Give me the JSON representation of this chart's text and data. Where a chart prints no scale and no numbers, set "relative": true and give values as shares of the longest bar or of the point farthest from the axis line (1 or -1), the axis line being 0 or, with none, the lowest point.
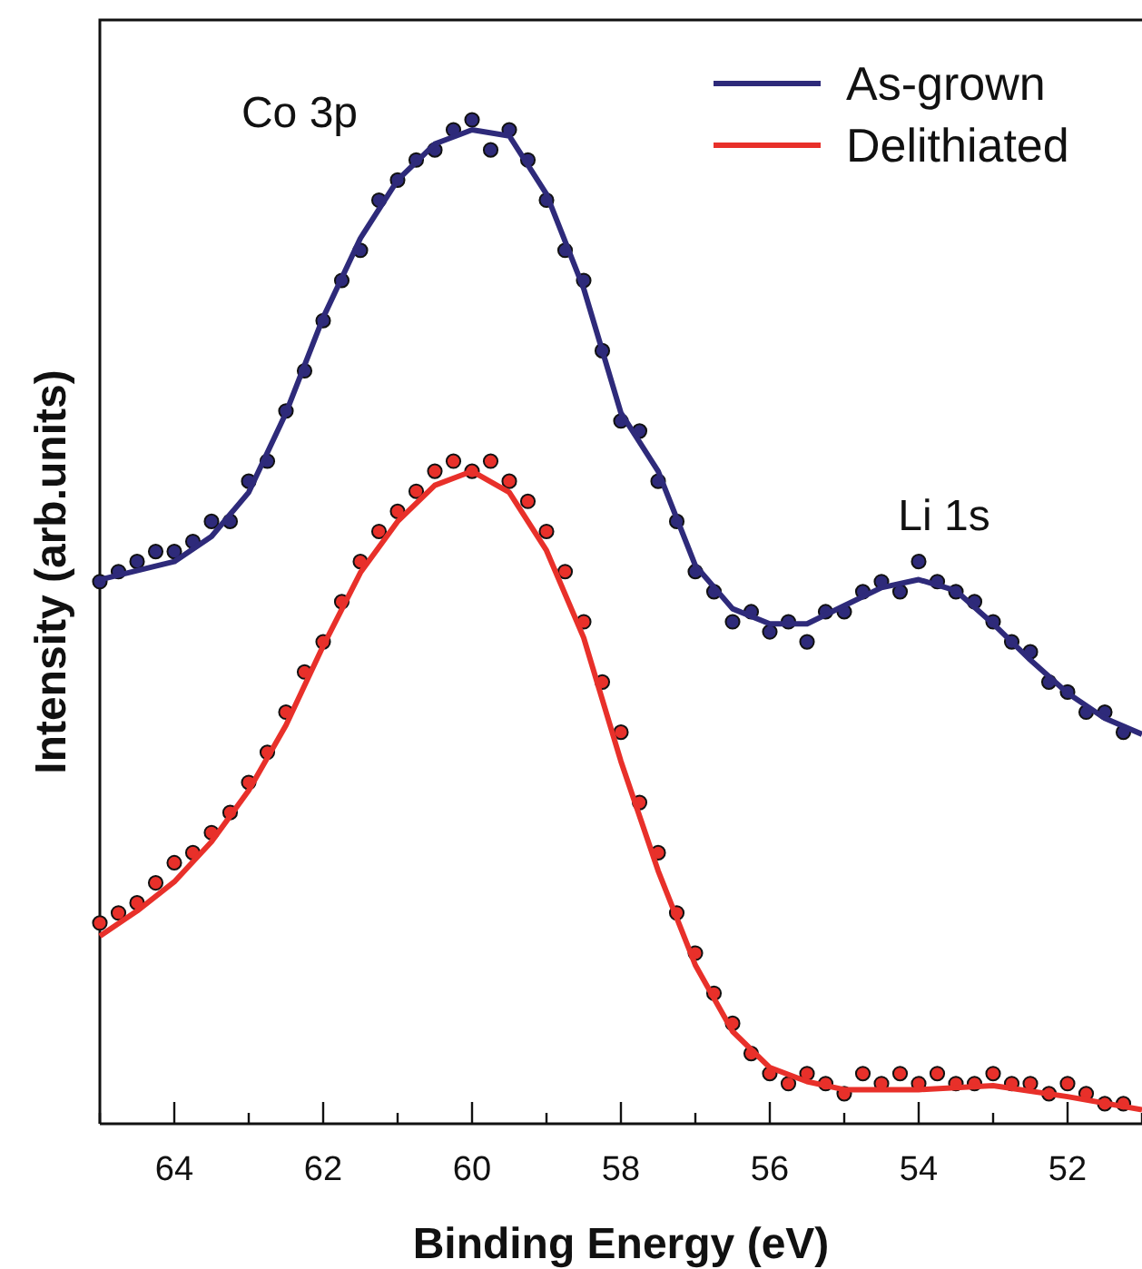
{
  "chart_data": {
    "type": "line",
    "xlabel": "Binding Energy (eV)",
    "ylabel": "Intensity (arb.units)",
    "relative": true,
    "xlim": [
      65,
      51
    ],
    "xticks": [
      {
        "value": 65,
        "label": null
      },
      64,
      {
        "value": 63,
        "label": null
      },
      62,
      {
        "value": 61,
        "label": null
      },
      60,
      {
        "value": 59,
        "label": null
      },
      58,
      {
        "value": 57,
        "label": null
      },
      56,
      {
        "value": 55,
        "label": null
      },
      54,
      {
        "value": 53,
        "label": null
      },
      52,
      {
        "value": 51,
        "label": null
      }
    ],
    "legend": "top right",
    "annotations": [
      "Co 3p",
      "Li 1s"
    ],
    "series": [
      {
        "type": "scatter",
        "name": "As-grown",
        "color": "#2e2a7a",
        "marker": "circle",
        "x": [
          65,
          64.75,
          64.5,
          64.25,
          64,
          63.75,
          63.5,
          63.25,
          63,
          62.75,
          62.5,
          62.25,
          62,
          61.75,
          61.5,
          61.25,
          61,
          60.75,
          60.5,
          60.25,
          60,
          59.75,
          59.5,
          59.25,
          59,
          58.75,
          58.5,
          58.25,
          58,
          57.75,
          57.5,
          57.25,
          57,
          56.75,
          56.5,
          56.25,
          56,
          55.75,
          55.5,
          55.25,
          55,
          54.75,
          54.5,
          54.25,
          54,
          53.75,
          53.5,
          53.25,
          53,
          52.75,
          52.5,
          52.25,
          52,
          51.75,
          51.5,
          51.25
        ],
        "values": [
          0.54,
          0.55,
          0.56,
          0.57,
          0.57,
          0.58,
          0.6,
          0.6,
          0.64,
          0.66,
          0.71,
          0.75,
          0.8,
          0.84,
          0.87,
          0.92,
          0.94,
          0.96,
          0.97,
          0.99,
          1,
          0.97,
          0.99,
          0.96,
          0.92,
          0.87,
          0.84,
          0.77,
          0.7,
          0.69,
          0.64,
          0.6,
          0.55,
          0.53,
          0.5,
          0.51,
          0.49,
          0.5,
          0.48,
          0.51,
          0.51,
          0.53,
          0.54,
          0.53,
          0.56,
          0.54,
          0.53,
          0.52,
          0.5,
          0.48,
          0.47,
          0.44,
          0.43,
          0.41,
          0.41,
          0.39
        ]
      },
      {
        "type": "scatter",
        "name": "Delithiated",
        "color": "#e8302a",
        "marker": "circle",
        "x": [
          65,
          64.75,
          64.5,
          64.25,
          64,
          63.75,
          63.5,
          63.25,
          63,
          62.75,
          62.5,
          62.25,
          62,
          61.75,
          61.5,
          61.25,
          61,
          60.75,
          60.5,
          60.25,
          60,
          59.75,
          59.5,
          59.25,
          59,
          58.75,
          58.5,
          58.25,
          58,
          57.75,
          57.5,
          57.25,
          57,
          56.75,
          56.5,
          56.25,
          56,
          55.75,
          55.5,
          55.25,
          55,
          54.75,
          54.5,
          54.25,
          54,
          53.75,
          53.5,
          53.25,
          53,
          52.75,
          52.5,
          52.25,
          52,
          51.75,
          51.5,
          51.25
        ],
        "values": [
          0.2,
          0.21,
          0.22,
          0.24,
          0.26,
          0.27,
          0.29,
          0.31,
          0.34,
          0.37,
          0.41,
          0.45,
          0.48,
          0.52,
          0.56,
          0.59,
          0.61,
          0.63,
          0.65,
          0.66,
          0.65,
          0.66,
          0.64,
          0.62,
          0.59,
          0.55,
          0.5,
          0.44,
          0.39,
          0.32,
          0.27,
          0.21,
          0.17,
          0.13,
          0.1,
          0.07,
          0.05,
          0.04,
          0.05,
          0.04,
          0.03,
          0.05,
          0.04,
          0.05,
          0.04,
          0.05,
          0.04,
          0.04,
          0.05,
          0.04,
          0.04,
          0.03,
          0.04,
          0.03,
          0.02,
          0.02
        ]
      },
      {
        "color": "#2e2a7a",
        "marker": "none",
        "x": [
          65,
          64,
          63.5,
          63,
          62.5,
          62,
          61.5,
          61,
          60.5,
          60,
          59.5,
          59,
          58.5,
          58,
          57.5,
          57,
          56.5,
          56,
          55.5,
          55,
          54.5,
          54,
          53.5,
          53,
          52.5,
          52,
          51.5,
          51
        ],
        "values": [
          0.542,
          0.56,
          0.585,
          0.629,
          0.708,
          0.803,
          0.882,
          0.94,
          0.976,
          0.99,
          0.984,
          0.926,
          0.832,
          0.708,
          0.65,
          0.556,
          0.513,
          0.498,
          0.498,
          0.516,
          0.534,
          0.542,
          0.531,
          0.498,
          0.462,
          0.429,
          0.404,
          0.388
        ]
      },
      {
        "color": "#e8302a",
        "marker": "none",
        "x": [
          65,
          64.5,
          64,
          63.5,
          63,
          62.5,
          62,
          61.5,
          61,
          60.5,
          60,
          59.5,
          59,
          58.5,
          58,
          57.5,
          57,
          56.5,
          56,
          55.5,
          55,
          54,
          53,
          52,
          51
        ],
        "values": [
          0.187,
          0.212,
          0.241,
          0.281,
          0.332,
          0.397,
          0.476,
          0.549,
          0.6,
          0.636,
          0.65,
          0.629,
          0.571,
          0.484,
          0.361,
          0.252,
          0.158,
          0.092,
          0.056,
          0.042,
          0.034,
          0.034,
          0.038,
          0.027,
          0.014
        ]
      }
    ]
  }
}
